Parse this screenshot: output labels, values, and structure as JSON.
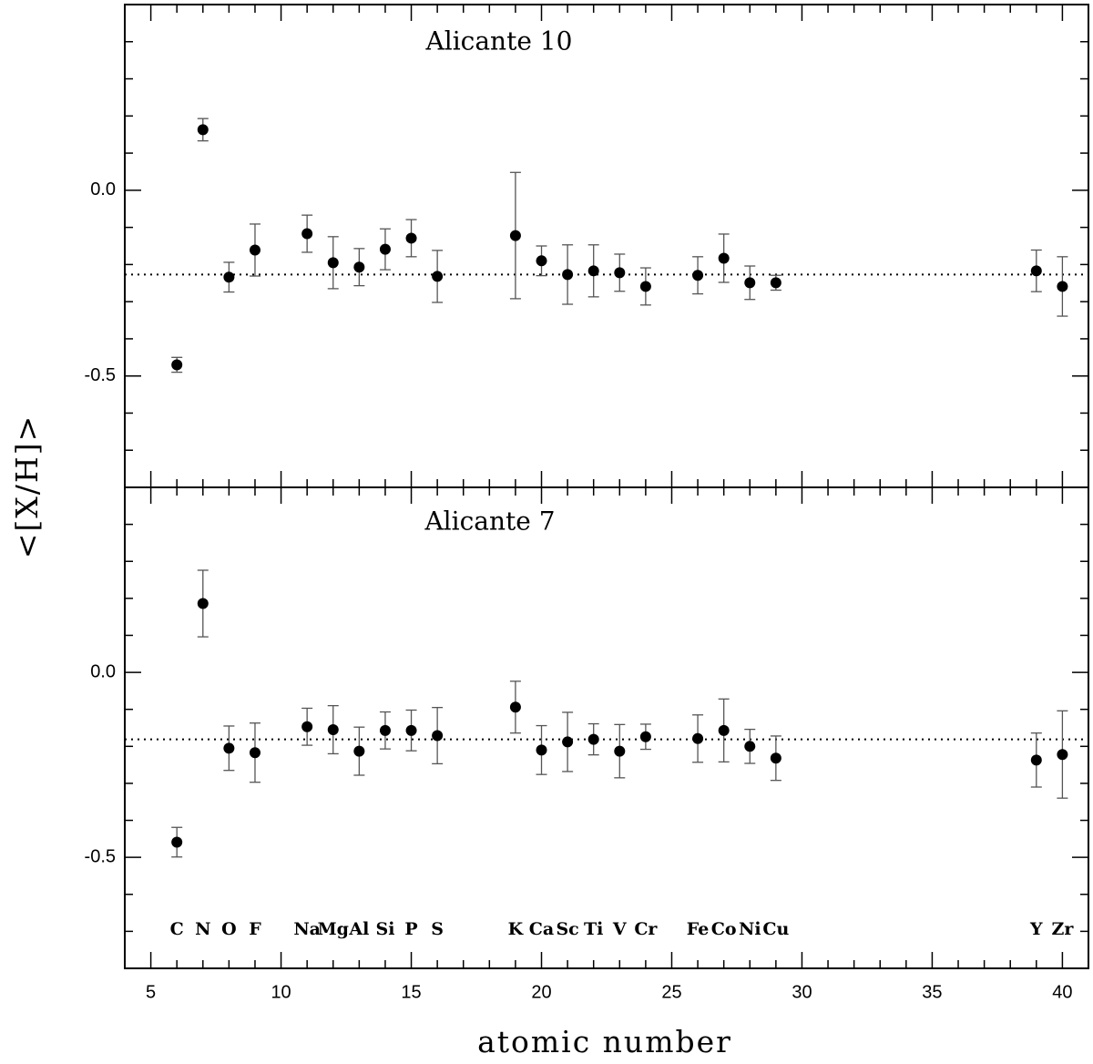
{
  "chart_data": [
    {
      "type": "scatter",
      "title": "Alicante 10",
      "ylabel": "<[X/H]>",
      "x": [
        6,
        7,
        8,
        9,
        11,
        12,
        13,
        14,
        15,
        16,
        19,
        20,
        21,
        22,
        23,
        24,
        26,
        27,
        28,
        29,
        39,
        40
      ],
      "values": [
        -0.47,
        0.163,
        -0.234,
        -0.161,
        -0.117,
        -0.195,
        -0.207,
        -0.159,
        -0.129,
        -0.232,
        -0.122,
        -0.19,
        -0.227,
        -0.217,
        -0.222,
        -0.259,
        -0.229,
        -0.183,
        -0.249,
        -0.249,
        -0.217,
        -0.259
      ],
      "errors": [
        0.02,
        0.03,
        0.04,
        0.07,
        0.05,
        0.07,
        0.05,
        0.055,
        0.05,
        0.07,
        0.17,
        0.04,
        0.08,
        0.07,
        0.05,
        0.05,
        0.05,
        0.065,
        0.045,
        0.02,
        0.056,
        0.08
      ],
      "mean": -0.227,
      "color": "#000000",
      "ylim": [
        -0.8,
        0.5
      ],
      "yticks": [
        {
          "value": 0,
          "label": "0.0"
        },
        -0.5
      ],
      "yminorticks": [
        -0.7,
        -0.6,
        -0.4,
        -0.3,
        -0.2,
        -0.1,
        0.1,
        0.2,
        0.3,
        0.4
      ]
    },
    {
      "type": "scatter",
      "title": "Alicante 7",
      "xlabel": "atomic number",
      "x": [
        6,
        7,
        8,
        9,
        11,
        12,
        13,
        14,
        15,
        16,
        19,
        20,
        21,
        22,
        23,
        24,
        26,
        27,
        28,
        29,
        39,
        40
      ],
      "point_labels": [
        "C",
        "N",
        "O",
        "F",
        "Na",
        "Mg",
        "Al",
        "Si",
        "P",
        "S",
        "K",
        "Ca",
        "Sc",
        "Ti",
        "V",
        "Cr",
        "Fe",
        "Co",
        "Ni",
        "Cu",
        "Y",
        "Zr"
      ],
      "values": [
        -0.459,
        0.186,
        -0.205,
        -0.217,
        -0.147,
        -0.155,
        -0.213,
        -0.157,
        -0.157,
        -0.171,
        -0.094,
        -0.21,
        -0.188,
        -0.181,
        -0.213,
        -0.174,
        -0.179,
        -0.157,
        -0.2,
        -0.232,
        -0.237,
        -0.222
      ],
      "errors": [
        0.04,
        0.09,
        0.06,
        0.08,
        0.05,
        0.065,
        0.065,
        0.05,
        0.055,
        0.076,
        0.07,
        0.066,
        0.08,
        0.042,
        0.072,
        0.034,
        0.064,
        0.085,
        0.046,
        0.06,
        0.073,
        0.118
      ],
      "mean": -0.181,
      "color": "#000000",
      "ylim": [
        -0.8,
        0.5
      ],
      "yticks": [
        {
          "value": 0,
          "label": "0.0"
        },
        -0.5
      ],
      "yminorticks": [
        -0.7,
        -0.6,
        -0.4,
        -0.3,
        -0.2,
        -0.1,
        0.1,
        0.2,
        0.3,
        0.4
      ],
      "xlim": [
        4,
        41
      ],
      "xticks": [
        5,
        10,
        15,
        20,
        25,
        30,
        35,
        40
      ],
      "xminorticks": [
        4,
        6,
        7,
        8,
        9,
        11,
        12,
        13,
        14,
        16,
        17,
        18,
        19,
        21,
        22,
        23,
        24,
        26,
        27,
        28,
        29,
        31,
        32,
        33,
        34,
        36,
        37,
        38,
        39,
        41
      ]
    }
  ]
}
